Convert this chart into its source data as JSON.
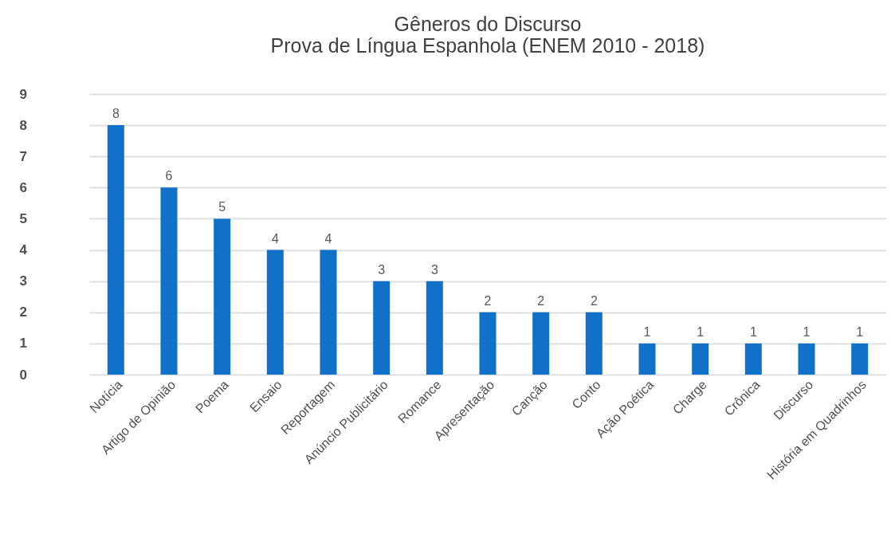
{
  "chart_data": {
    "type": "bar",
    "title": "Gêneros do Discurso",
    "subtitle": "Prova de Língua Espanhola (ENEM 2010 - 2018)",
    "categories": [
      "Notícia",
      "Artigo de Opinião",
      "Poema",
      "Ensaio",
      "Reportagem",
      "Anúncio Publicitário",
      "Romance",
      "Apresentação",
      "Canção",
      "Conto",
      "Ação Poética",
      "Charge",
      "Crônica",
      "Discurso",
      "História em Quadrinhos"
    ],
    "values": [
      8,
      6,
      5,
      4,
      4,
      3,
      3,
      2,
      2,
      2,
      1,
      1,
      1,
      1,
      1
    ],
    "color": "#1170c8",
    "ylim": [
      0,
      9
    ],
    "yticks": [
      0,
      1,
      2,
      3,
      4,
      5,
      6,
      7,
      8,
      9
    ],
    "grid": "y",
    "data_labels": true
  }
}
